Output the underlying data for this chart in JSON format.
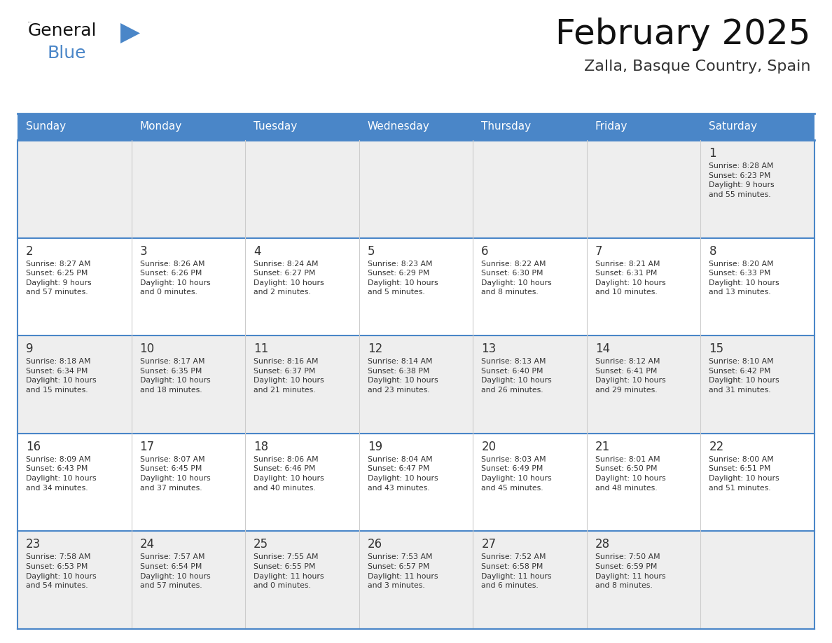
{
  "title": "February 2025",
  "subtitle": "Zalla, Basque Country, Spain",
  "header_bg": "#4a86c8",
  "header_text": "#ffffff",
  "cell_bg_white": "#ffffff",
  "cell_bg_gray": "#f0f0f0",
  "border_color_blue": "#4a86c8",
  "border_color_light": "#cccccc",
  "day_number_color": "#333333",
  "text_color": "#333333",
  "days_of_week": [
    "Sunday",
    "Monday",
    "Tuesday",
    "Wednesday",
    "Thursday",
    "Friday",
    "Saturday"
  ],
  "weeks": [
    [
      {
        "day": null,
        "info": null
      },
      {
        "day": null,
        "info": null
      },
      {
        "day": null,
        "info": null
      },
      {
        "day": null,
        "info": null
      },
      {
        "day": null,
        "info": null
      },
      {
        "day": null,
        "info": null
      },
      {
        "day": 1,
        "info": "Sunrise: 8:28 AM\nSunset: 6:23 PM\nDaylight: 9 hours\nand 55 minutes."
      }
    ],
    [
      {
        "day": 2,
        "info": "Sunrise: 8:27 AM\nSunset: 6:25 PM\nDaylight: 9 hours\nand 57 minutes."
      },
      {
        "day": 3,
        "info": "Sunrise: 8:26 AM\nSunset: 6:26 PM\nDaylight: 10 hours\nand 0 minutes."
      },
      {
        "day": 4,
        "info": "Sunrise: 8:24 AM\nSunset: 6:27 PM\nDaylight: 10 hours\nand 2 minutes."
      },
      {
        "day": 5,
        "info": "Sunrise: 8:23 AM\nSunset: 6:29 PM\nDaylight: 10 hours\nand 5 minutes."
      },
      {
        "day": 6,
        "info": "Sunrise: 8:22 AM\nSunset: 6:30 PM\nDaylight: 10 hours\nand 8 minutes."
      },
      {
        "day": 7,
        "info": "Sunrise: 8:21 AM\nSunset: 6:31 PM\nDaylight: 10 hours\nand 10 minutes."
      },
      {
        "day": 8,
        "info": "Sunrise: 8:20 AM\nSunset: 6:33 PM\nDaylight: 10 hours\nand 13 minutes."
      }
    ],
    [
      {
        "day": 9,
        "info": "Sunrise: 8:18 AM\nSunset: 6:34 PM\nDaylight: 10 hours\nand 15 minutes."
      },
      {
        "day": 10,
        "info": "Sunrise: 8:17 AM\nSunset: 6:35 PM\nDaylight: 10 hours\nand 18 minutes."
      },
      {
        "day": 11,
        "info": "Sunrise: 8:16 AM\nSunset: 6:37 PM\nDaylight: 10 hours\nand 21 minutes."
      },
      {
        "day": 12,
        "info": "Sunrise: 8:14 AM\nSunset: 6:38 PM\nDaylight: 10 hours\nand 23 minutes."
      },
      {
        "day": 13,
        "info": "Sunrise: 8:13 AM\nSunset: 6:40 PM\nDaylight: 10 hours\nand 26 minutes."
      },
      {
        "day": 14,
        "info": "Sunrise: 8:12 AM\nSunset: 6:41 PM\nDaylight: 10 hours\nand 29 minutes."
      },
      {
        "day": 15,
        "info": "Sunrise: 8:10 AM\nSunset: 6:42 PM\nDaylight: 10 hours\nand 31 minutes."
      }
    ],
    [
      {
        "day": 16,
        "info": "Sunrise: 8:09 AM\nSunset: 6:43 PM\nDaylight: 10 hours\nand 34 minutes."
      },
      {
        "day": 17,
        "info": "Sunrise: 8:07 AM\nSunset: 6:45 PM\nDaylight: 10 hours\nand 37 minutes."
      },
      {
        "day": 18,
        "info": "Sunrise: 8:06 AM\nSunset: 6:46 PM\nDaylight: 10 hours\nand 40 minutes."
      },
      {
        "day": 19,
        "info": "Sunrise: 8:04 AM\nSunset: 6:47 PM\nDaylight: 10 hours\nand 43 minutes."
      },
      {
        "day": 20,
        "info": "Sunrise: 8:03 AM\nSunset: 6:49 PM\nDaylight: 10 hours\nand 45 minutes."
      },
      {
        "day": 21,
        "info": "Sunrise: 8:01 AM\nSunset: 6:50 PM\nDaylight: 10 hours\nand 48 minutes."
      },
      {
        "day": 22,
        "info": "Sunrise: 8:00 AM\nSunset: 6:51 PM\nDaylight: 10 hours\nand 51 minutes."
      }
    ],
    [
      {
        "day": 23,
        "info": "Sunrise: 7:58 AM\nSunset: 6:53 PM\nDaylight: 10 hours\nand 54 minutes."
      },
      {
        "day": 24,
        "info": "Sunrise: 7:57 AM\nSunset: 6:54 PM\nDaylight: 10 hours\nand 57 minutes."
      },
      {
        "day": 25,
        "info": "Sunrise: 7:55 AM\nSunset: 6:55 PM\nDaylight: 11 hours\nand 0 minutes."
      },
      {
        "day": 26,
        "info": "Sunrise: 7:53 AM\nSunset: 6:57 PM\nDaylight: 11 hours\nand 3 minutes."
      },
      {
        "day": 27,
        "info": "Sunrise: 7:52 AM\nSunset: 6:58 PM\nDaylight: 11 hours\nand 6 minutes."
      },
      {
        "day": 28,
        "info": "Sunrise: 7:50 AM\nSunset: 6:59 PM\nDaylight: 11 hours\nand 8 minutes."
      },
      {
        "day": null,
        "info": null
      }
    ]
  ],
  "logo_general_color": "#111111",
  "logo_blue_color": "#4a86c8",
  "logo_triangle_color": "#4a86c8",
  "row_bg_colors": [
    "#eeeeee",
    "#ffffff",
    "#eeeeee",
    "#ffffff",
    "#eeeeee"
  ]
}
